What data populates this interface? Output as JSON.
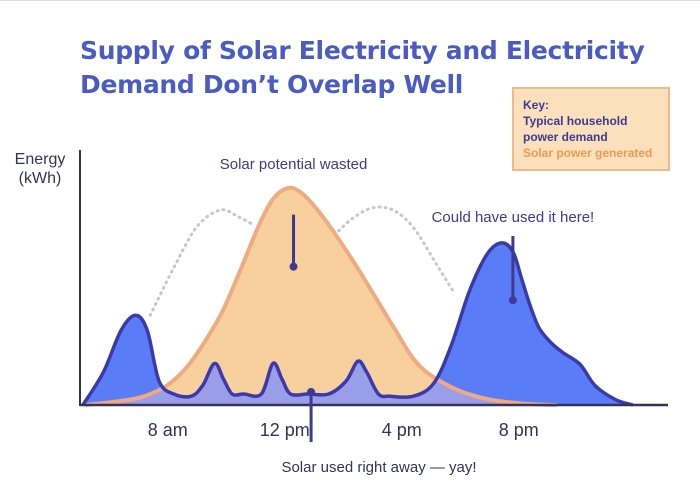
{
  "header": {
    "title_line1": "Supply of Solar Electricity and Electricity",
    "title_line2": "Demand Don’t Overlap Well"
  },
  "key": {
    "title": "Key:",
    "demand_line1": "Typical household",
    "demand_line2": "power demand",
    "solar": "Solar power generated"
  },
  "colors": {
    "title": "#4a5bc4",
    "demand_fill": "#5b7cf7",
    "demand_stroke": "#3b3aa8",
    "solar_fill": "#f8d09d",
    "solar_stroke": "#eeaa80",
    "overlap_fill": "#9a9ee8",
    "dotted_line": "#c8c8c8",
    "annotation_text": "#3e3a8f",
    "axis": "#33335a"
  },
  "chart_data": {
    "type": "area",
    "title": "Supply of Solar Electricity and Electricity Demand Don’t Overlap Well",
    "ylabel": "Energy (kWh)",
    "xlabel": "",
    "x_range": [
      5,
      25
    ],
    "y_range": [
      0,
      210
    ],
    "ticks": [
      {
        "label": "8 am",
        "x": 8
      },
      {
        "label": "12 pm",
        "x": 12
      },
      {
        "label": "4 pm",
        "x": 16
      },
      {
        "label": "8 pm",
        "x": 20
      }
    ],
    "series": [
      {
        "name": "Solar power generated",
        "x": [
          5.2,
          7.2,
          8.5,
          9.7,
          10.4,
          11.1,
          11.6,
          12.1,
          12.5,
          13.0,
          13.7,
          14.7,
          15.7,
          16.6,
          17.8,
          19.0,
          20.3,
          21.3
        ],
        "y": [
          0,
          8,
          30,
          77,
          118,
          163,
          188,
          198,
          195,
          182,
          157,
          116,
          72,
          36,
          15,
          5,
          1,
          0
        ]
      },
      {
        "name": "Typical household power demand",
        "x": [
          5.1,
          5.8,
          6.4,
          6.9,
          7.3,
          7.7,
          8.2,
          8.8,
          9.2,
          9.6,
          9.9,
          10.2,
          10.6,
          11.2,
          11.6,
          11.9,
          12.2,
          12.8,
          13.5,
          14.1,
          14.5,
          14.8,
          15.2,
          15.6,
          16.4,
          17.1,
          17.7,
          18.3,
          18.9,
          19.4,
          19.8,
          20.1,
          20.4,
          20.7,
          21.1,
          21.5,
          22.1,
          22.6,
          23.3,
          23.9
        ],
        "y": [
          0,
          30,
          68,
          82,
          68,
          22,
          10,
          8,
          18,
          38,
          24,
          10,
          10,
          10,
          38,
          24,
          10,
          10,
          10,
          22,
          40,
          30,
          10,
          8,
          8,
          20,
          55,
          103,
          137,
          148,
          140,
          115,
          90,
          70,
          57,
          48,
          37,
          18,
          5,
          0
        ]
      },
      {
        "name": "Demand when solar is generated (dotted)",
        "x": [
          7.4,
          8.2,
          9.0,
          9.8,
          10.4,
          10.9
        ],
        "y": [
          82,
          125,
          163,
          178,
          172,
          165
        ]
      },
      {
        "name": "Demand when solar is generated (dotted, afternoon)",
        "x": [
          13.7,
          14.3,
          15.0,
          15.7,
          16.4,
          17.2,
          17.8
        ],
        "y": [
          155,
          170,
          180,
          178,
          162,
          128,
          102
        ]
      }
    ],
    "annotations": [
      {
        "text": "Solar potential wasted",
        "x": 12.3,
        "y": 172
      },
      {
        "text": "Could have used it here!",
        "x": 19.8,
        "y": 123
      },
      {
        "text": "Solar used right away — yay!",
        "x": 15.8,
        "y": 22
      }
    ]
  }
}
